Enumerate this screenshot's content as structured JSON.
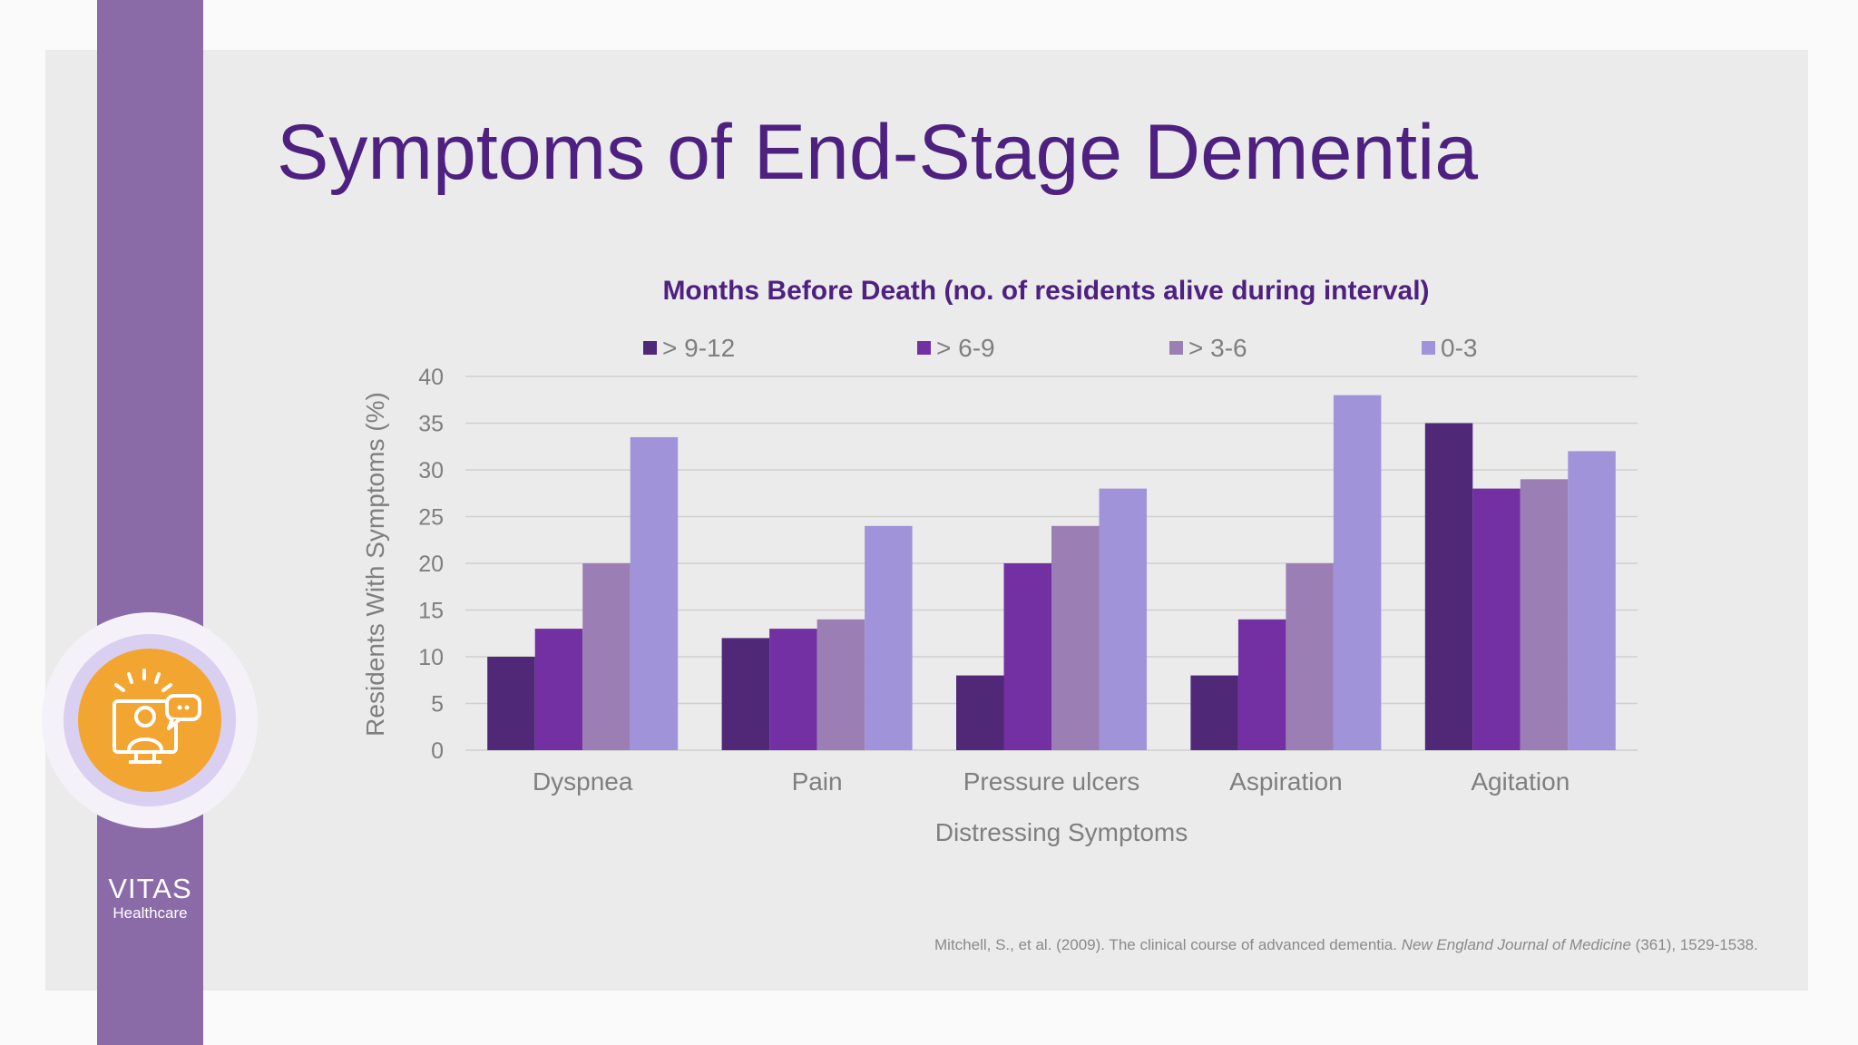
{
  "slide": {
    "title": "Symptoms of End-Stage Dementia",
    "brand": {
      "name": "VITAS",
      "sub": "Healthcare"
    },
    "citation": {
      "authors": "Mitchell, S., et al. (2009). The clinical course of advanced dementia. ",
      "journal": "New England Journal of Medicine",
      "rest": " (361), 1529-1538."
    },
    "icon": "person-at-monitor-with-chat-bubble-icon"
  },
  "colors": {
    "title": "#4e2180",
    "band": "#8b6aa8",
    "logo": "#f3a532"
  },
  "chart_data": {
    "type": "bar",
    "title": "Months Before Death (no. of residents alive during interval)",
    "xlabel": "Distressing Symptoms",
    "ylabel": "Residents With Symptoms (%)",
    "ylim": [
      0,
      40
    ],
    "yticks": [
      0,
      5,
      10,
      15,
      20,
      25,
      30,
      35,
      40
    ],
    "grid": true,
    "legend_position": "top",
    "categories": [
      "Dyspnea",
      "Pain",
      "Pressure ulcers",
      "Aspiration",
      "Agitation"
    ],
    "series": [
      {
        "name": "> 9-12",
        "color": "#4f2878",
        "values": [
          10,
          12,
          8,
          8,
          35
        ]
      },
      {
        "name": "> 6-9",
        "color": "#7330a3",
        "values": [
          13,
          13,
          20,
          14,
          28
        ]
      },
      {
        "name": "> 3-6",
        "color": "#9b7fb4",
        "values": [
          20,
          14,
          24,
          20,
          29
        ]
      },
      {
        "name": "0-3",
        "color": "#a193da",
        "values": [
          33.5,
          24,
          28,
          38,
          32
        ]
      }
    ]
  }
}
